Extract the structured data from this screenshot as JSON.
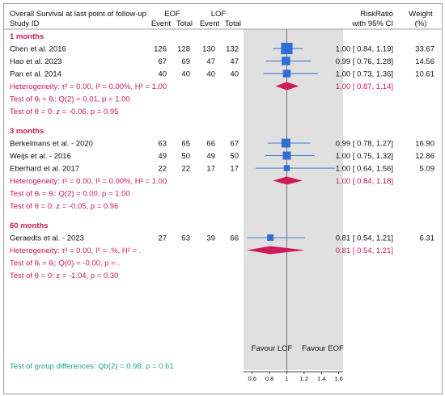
{
  "chart_data": {
    "type": "forest",
    "title": "Overall Survival at last point of follow-up",
    "headers": {
      "study": "Study ID",
      "group1": "EOF",
      "group2": "LOF",
      "event": "Event",
      "total": "Total",
      "effect": "RiskRatio",
      "ci": "with 95% CI",
      "weight": "Weight",
      "weight_unit": "(%)"
    },
    "groups": [
      {
        "label": "1 months",
        "studies": [
          {
            "name": "Chen et al. 2016",
            "e1": "126",
            "t1": "128",
            "e2": "130",
            "t2": "132",
            "rr": 1.0,
            "lo": 0.84,
            "hi": 1.19,
            "ci_text": "1.00 [ 0.84,  1.19]",
            "weight": "33.67",
            "w": 33.67
          },
          {
            "name": "Hao et al. 2023",
            "e1": "67",
            "t1": "69",
            "e2": "47",
            "t2": "47",
            "rr": 0.99,
            "lo": 0.76,
            "hi": 1.28,
            "ci_text": "0.99 [ 0.76,  1.28]",
            "weight": "14.56",
            "w": 14.56
          },
          {
            "name": "Pan et al. 2014",
            "e1": "40",
            "t1": "40",
            "e2": "40",
            "t2": "40",
            "rr": 1.0,
            "lo": 0.73,
            "hi": 1.36,
            "ci_text": "1.00 [ 0.73,  1.36]",
            "weight": "10.61",
            "w": 10.61
          }
        ],
        "heterogeneity": "Heterogeneity: τ² = 0.00, I² = 0.00%, H² = 1.00",
        "test_equal": "Test of θᵢ = θⱼ: Q(2) = 0.01, p = 1.00",
        "test_zero": "Test of θ = 0: z = -0.06, p = 0.95",
        "pooled": {
          "rr": 1.0,
          "lo": 0.87,
          "hi": 1.14,
          "ci_text": "1.00 [ 0.87,  1.14]"
        }
      },
      {
        "label": "3 months",
        "studies": [
          {
            "name": "Berkelmans et al. - 2020",
            "e1": "63",
            "t1": "65",
            "e2": "66",
            "t2": "67",
            "rr": 0.99,
            "lo": 0.78,
            "hi": 1.27,
            "ci_text": "0.99 [ 0.78,  1.27]",
            "weight": "16.90",
            "w": 16.9
          },
          {
            "name": "Weijs et al. - 2016",
            "e1": "49",
            "t1": "50",
            "e2": "49",
            "t2": "50",
            "rr": 1.0,
            "lo": 0.75,
            "hi": 1.32,
            "ci_text": "1.00 [ 0.75,  1.32]",
            "weight": "12.86",
            "w": 12.86
          },
          {
            "name": "Eberhard et al. 2017",
            "e1": "22",
            "t1": "22",
            "e2": "17",
            "t2": "17",
            "rr": 1.0,
            "lo": 0.64,
            "hi": 1.56,
            "ci_text": "1.00 [ 0.64,  1.56]",
            "weight": "5.09",
            "w": 5.09
          }
        ],
        "heterogeneity": "Heterogeneity: τ² = 0.00, I² = 0.00%, H² = 1.00",
        "test_equal": "Test of θᵢ = θⱼ: Q(2) = 0.00, p = 1.00",
        "test_zero": "Test of θ = 0: z = -0.05, p = 0.96",
        "pooled": {
          "rr": 1.0,
          "lo": 0.84,
          "hi": 1.18,
          "ci_text": "1.00 [ 0.84,  1.18]"
        }
      },
      {
        "label": "60 months",
        "studies": [
          {
            "name": "Geraedts et al. - 2023",
            "e1": "27",
            "t1": "63",
            "e2": "39",
            "t2": "66",
            "rr": 0.81,
            "lo": 0.54,
            "hi": 1.21,
            "ci_text": "0.81 [ 0.54,  1.21]",
            "weight": "6.31",
            "w": 6.31
          }
        ],
        "heterogeneity": "Heterogeneity: τ² = 0.00, I² = .%, H² = .",
        "test_equal": "Test of θᵢ = θⱼ: Q(0) = -0.00, p = .",
        "test_zero": "Test of θ = 0: z = -1.04, p = 0.30",
        "pooled": {
          "rr": 0.81,
          "lo": 0.54,
          "hi": 1.21,
          "ci_text": "0.81 [ 0.54,  1.21]"
        }
      }
    ],
    "group_test": "Test of group differences: Qb(2) = 0.98, p = 0.61",
    "favour_left": "Favour LOF",
    "favour_right": "Favour EOF",
    "x_axis": {
      "ticks": [
        0.6,
        0.8,
        1,
        1.2,
        1.4,
        1.6
      ],
      "tick_labels": [
        "0.6",
        "0.8",
        "1",
        "1.2",
        "1.4",
        "1.6"
      ],
      "range": [
        0.5,
        1.65
      ]
    },
    "colors": {
      "marker": "#2f6fd6",
      "line": "#2f6fd6",
      "diamond": "#d11a5a",
      "group_text": "#c81a5c",
      "band": "#e0e0e0",
      "teal": "#1fa18c"
    }
  }
}
